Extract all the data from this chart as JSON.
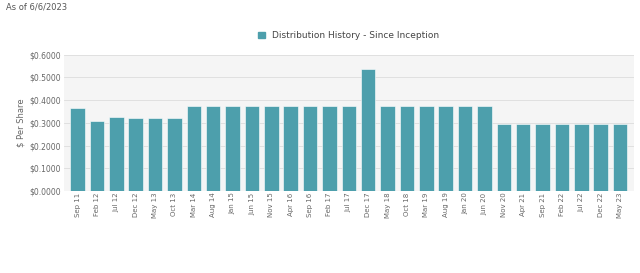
{
  "labels": [
    "Sep 11",
    "Feb 12",
    "Jul 12",
    "Dec 12",
    "May 13",
    "Oct 13",
    "Mar 14",
    "Aug 14",
    "Jan 15",
    "Jun 15",
    "Nov 15",
    "Apr 16",
    "Sep 16",
    "Feb 17",
    "Jul 17",
    "Dec 17",
    "May 18",
    "Oct 18",
    "Mar 19",
    "Aug 19",
    "Jan 20",
    "Jun 20",
    "Nov 20",
    "Apr 21",
    "Sep 21",
    "Feb 22",
    "Jul 22",
    "Dec 22",
    "May 23"
  ],
  "values": [
    0.365,
    0.31,
    0.325,
    0.32,
    0.32,
    0.32,
    0.375,
    0.375,
    0.375,
    0.375,
    0.375,
    0.375,
    0.375,
    0.375,
    0.375,
    0.535,
    0.375,
    0.375,
    0.375,
    0.375,
    0.375,
    0.375,
    0.295,
    0.295,
    0.295,
    0.295,
    0.295,
    0.295,
    0.295
  ],
  "bar_color": "#4d9fac",
  "bar_edge_color": "#4d9fac",
  "legend_label": "Distribution History - Since Inception",
  "legend_marker_color": "#4d9fac",
  "ylabel": "$ Per Share",
  "header_text": "As of 6/6/2023",
  "ylim": [
    0.0,
    0.6
  ],
  "ytick_values": [
    0.0,
    0.1,
    0.2,
    0.3,
    0.4,
    0.5,
    0.6
  ],
  "background_color": "#f5f5f5",
  "grid_color": "#dddddd",
  "fig_width": 6.4,
  "fig_height": 2.73
}
